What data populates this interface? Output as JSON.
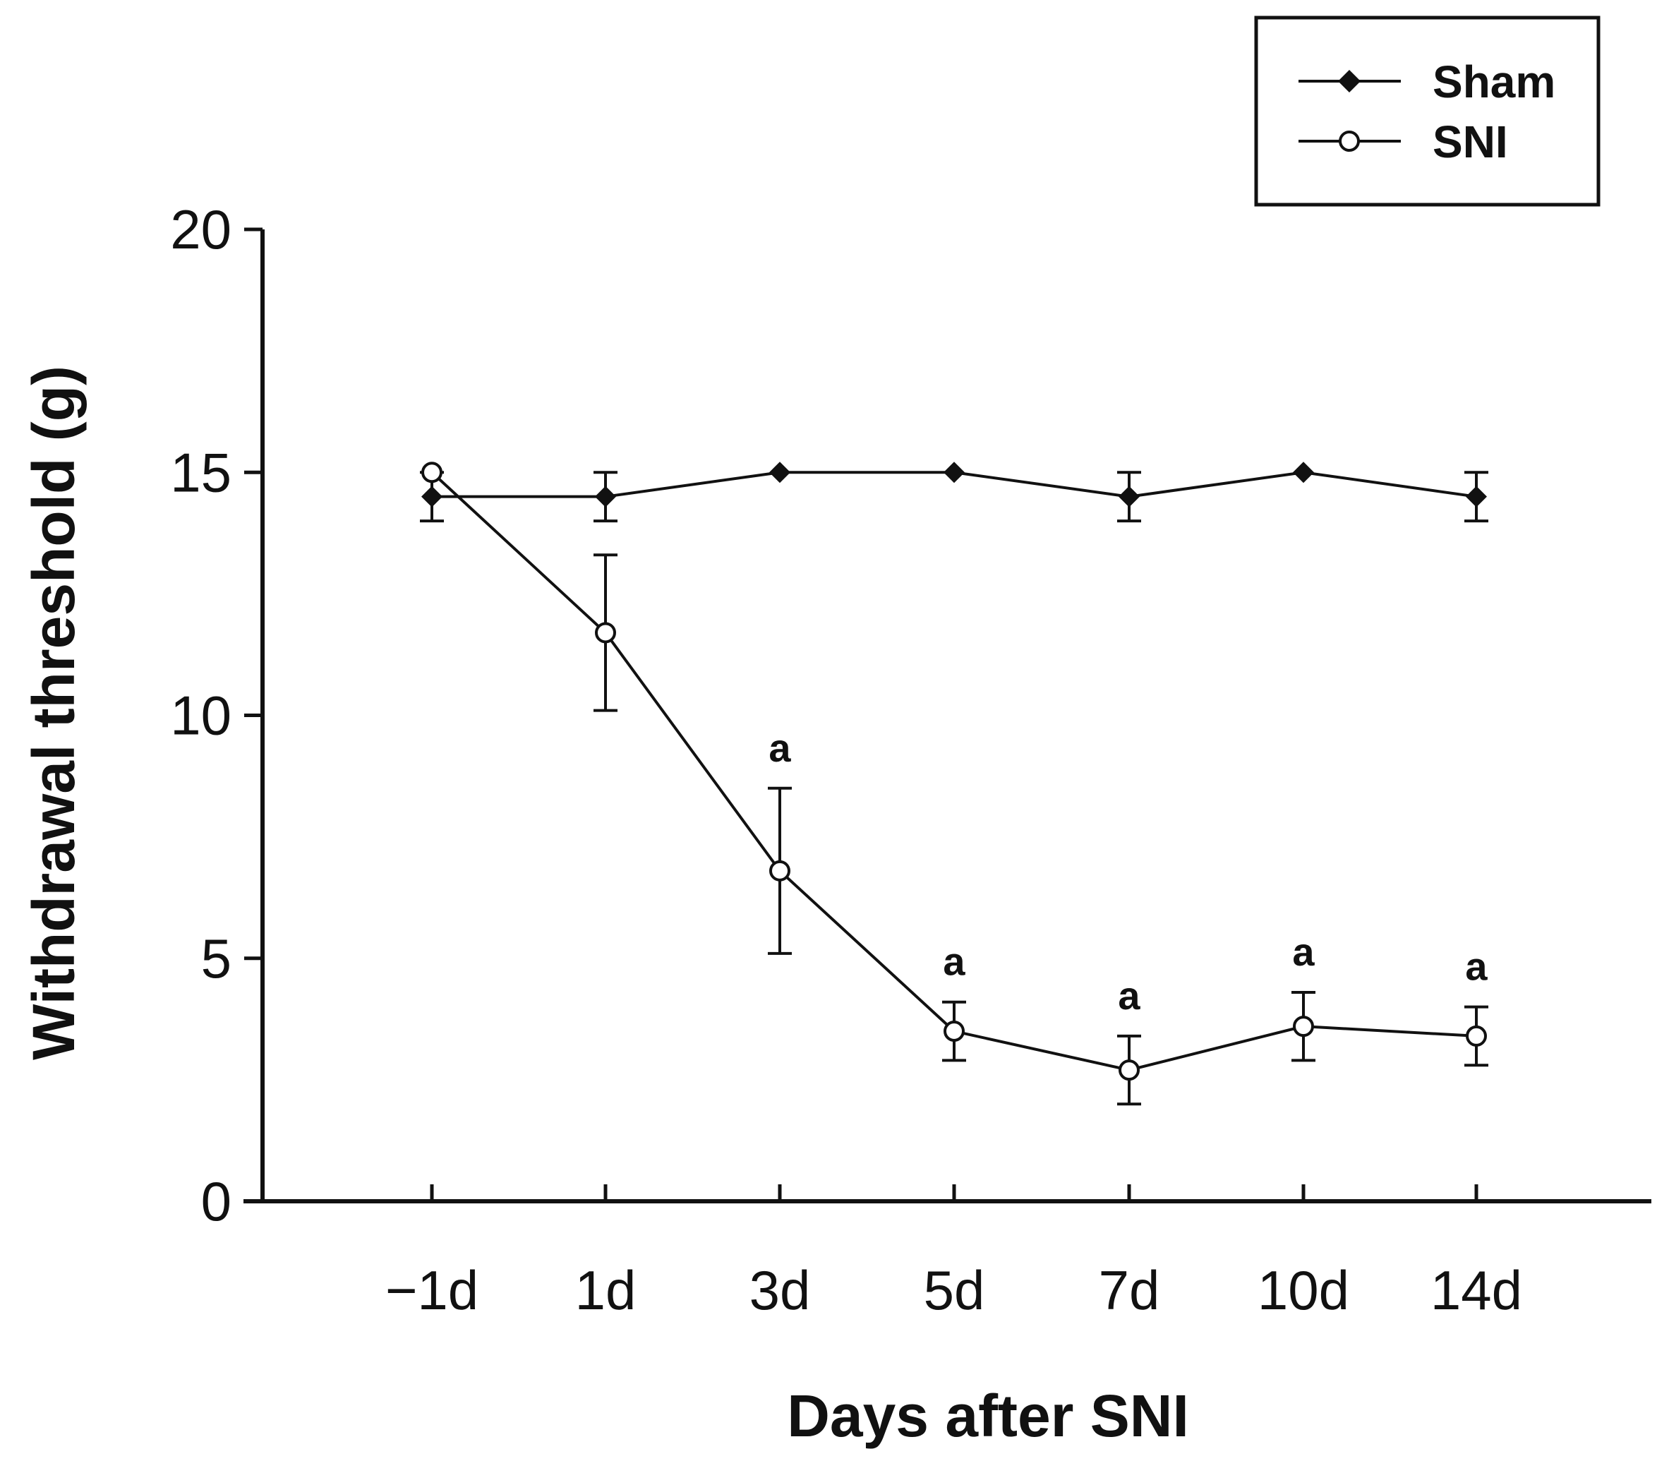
{
  "chart_data": {
    "type": "line",
    "title": "",
    "xlabel": "Days after SNI",
    "ylabel": "Withdrawal threshold (g)",
    "categories": [
      "−1d",
      "1d",
      "3d",
      "5d",
      "7d",
      "10d",
      "14d"
    ],
    "ylim": [
      0,
      20
    ],
    "yticks": [
      0,
      5,
      10,
      15,
      20
    ],
    "grid": false,
    "legend_position": "top-right",
    "series": [
      {
        "name": "Sham",
        "marker": "filled-diamond",
        "values": [
          14.5,
          14.5,
          15.0,
          15.0,
          14.5,
          15.0,
          14.5
        ],
        "errors": [
          0.5,
          0.5,
          0,
          0,
          0.5,
          0,
          0.5
        ]
      },
      {
        "name": "SNI",
        "marker": "open-circle",
        "values": [
          15.0,
          11.7,
          6.8,
          3.5,
          2.7,
          3.6,
          3.4
        ],
        "errors": [
          0,
          1.6,
          1.7,
          0.6,
          0.7,
          0.7,
          0.6
        ]
      }
    ],
    "annotations": [
      {
        "category_index": 2,
        "text": "a"
      },
      {
        "category_index": 3,
        "text": "a"
      },
      {
        "category_index": 4,
        "text": "a"
      },
      {
        "category_index": 5,
        "text": "a"
      },
      {
        "category_index": 6,
        "text": "a"
      }
    ]
  }
}
